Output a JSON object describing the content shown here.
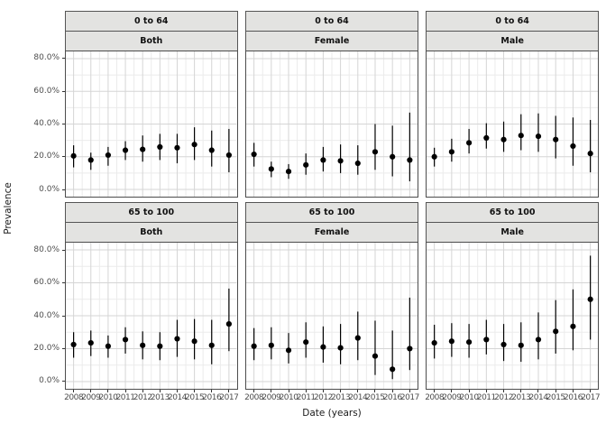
{
  "chart_data": {
    "type": "scatter",
    "subtype": "pointrange-with-error-bars-faceted",
    "title": "",
    "xlabel": "Date (years)",
    "ylabel": "Prevalence",
    "x": [
      2008,
      2009,
      2010,
      2011,
      2012,
      2013,
      2014,
      2015,
      2016,
      2017
    ],
    "x_tick_labels": [
      "2008",
      "2009",
      "2010",
      "2011",
      "2012",
      "2013",
      "2014",
      "2015",
      "2016",
      "2017"
    ],
    "y_tick_labels": [
      "0.0%",
      "20.0%",
      "40.0%",
      "60.0%",
      "80.0%"
    ],
    "y_ticks_pct": [
      0,
      20,
      40,
      60,
      80
    ],
    "y_minor_ticks_pct": [
      10,
      30,
      50,
      70
    ],
    "ylim_pct": [
      -4.4,
      84.4
    ],
    "grid": "major-and-minor",
    "legend": "none",
    "facet_row_labels": [
      "0 to 64",
      "65 to 100"
    ],
    "facet_col_labels": [
      "Both",
      "Female",
      "Male"
    ],
    "panels": [
      {
        "age_group": "0 to 64",
        "sex": "Both",
        "est_pct": [
          20.5,
          18,
          21,
          24,
          24.5,
          26,
          25.5,
          27.5,
          24,
          21
        ],
        "lo_pct": [
          13.5,
          12,
          14.5,
          18,
          17,
          18,
          16,
          18,
          14,
          10.5
        ],
        "hi_pct": [
          27,
          22.5,
          26,
          29.5,
          33,
          34,
          34,
          38,
          36,
          37
        ]
      },
      {
        "age_group": "0 to 64",
        "sex": "Female",
        "est_pct": [
          21.5,
          12.5,
          11,
          15,
          18,
          17.5,
          16,
          23,
          20,
          18
        ],
        "lo_pct": [
          14,
          7.5,
          6.5,
          9,
          11,
          10,
          9,
          12,
          8,
          5
        ],
        "hi_pct": [
          28.5,
          17,
          15.5,
          22,
          26,
          27.5,
          27,
          40,
          39,
          47
        ]
      },
      {
        "age_group": "0 to 64",
        "sex": "Male",
        "est_pct": [
          20,
          23,
          28.5,
          31.5,
          30.5,
          33,
          32.5,
          30.5,
          26.5,
          22
        ],
        "lo_pct": [
          14,
          17,
          22,
          25,
          23,
          24,
          23,
          19,
          14.5,
          10.5
        ],
        "hi_pct": [
          25.5,
          31,
          37,
          40.5,
          41.5,
          46,
          46.5,
          45,
          44,
          42.5
        ]
      },
      {
        "age_group": "65 to 100",
        "sex": "Both",
        "est_pct": [
          22.5,
          23.5,
          21.5,
          25.5,
          22,
          21.5,
          26,
          24.5,
          22,
          35
        ],
        "lo_pct": [
          14.5,
          15.5,
          14.5,
          17,
          13.5,
          13,
          15,
          13.5,
          10.5,
          18.5
        ],
        "hi_pct": [
          30,
          31,
          28,
          33,
          30.5,
          30,
          37.5,
          38,
          37.5,
          56.5
        ]
      },
      {
        "age_group": "65 to 100",
        "sex": "Female",
        "est_pct": [
          21.5,
          22,
          19,
          24,
          21,
          20.5,
          26.5,
          15.5,
          7.5,
          20
        ],
        "lo_pct": [
          13,
          13.5,
          11,
          14.5,
          11.5,
          10.5,
          13,
          4,
          1.5,
          7
        ],
        "hi_pct": [
          32.5,
          33,
          29.5,
          36,
          33.5,
          35,
          42.5,
          37,
          31,
          51
        ]
      },
      {
        "age_group": "65 to 100",
        "sex": "Male",
        "est_pct": [
          23.5,
          24.5,
          24,
          25.5,
          22.5,
          22,
          25.5,
          30.5,
          33.5,
          50
        ],
        "lo_pct": [
          14,
          15,
          14.5,
          16.5,
          12.5,
          12,
          13.5,
          17,
          19,
          25.5
        ],
        "hi_pct": [
          34.5,
          35.5,
          35,
          37.5,
          35,
          36,
          42,
          49.5,
          56,
          76.5
        ]
      }
    ],
    "colors": {
      "point": "#000000",
      "error_bar": "#000000",
      "strip_fill": "#e3e3e1",
      "strip_border": "#555555",
      "panel_border": "#4d4d4d",
      "grid_major": "#d5d5d5",
      "grid_minor": "#ebebeb",
      "axis_text": "#4d4d4d"
    }
  }
}
